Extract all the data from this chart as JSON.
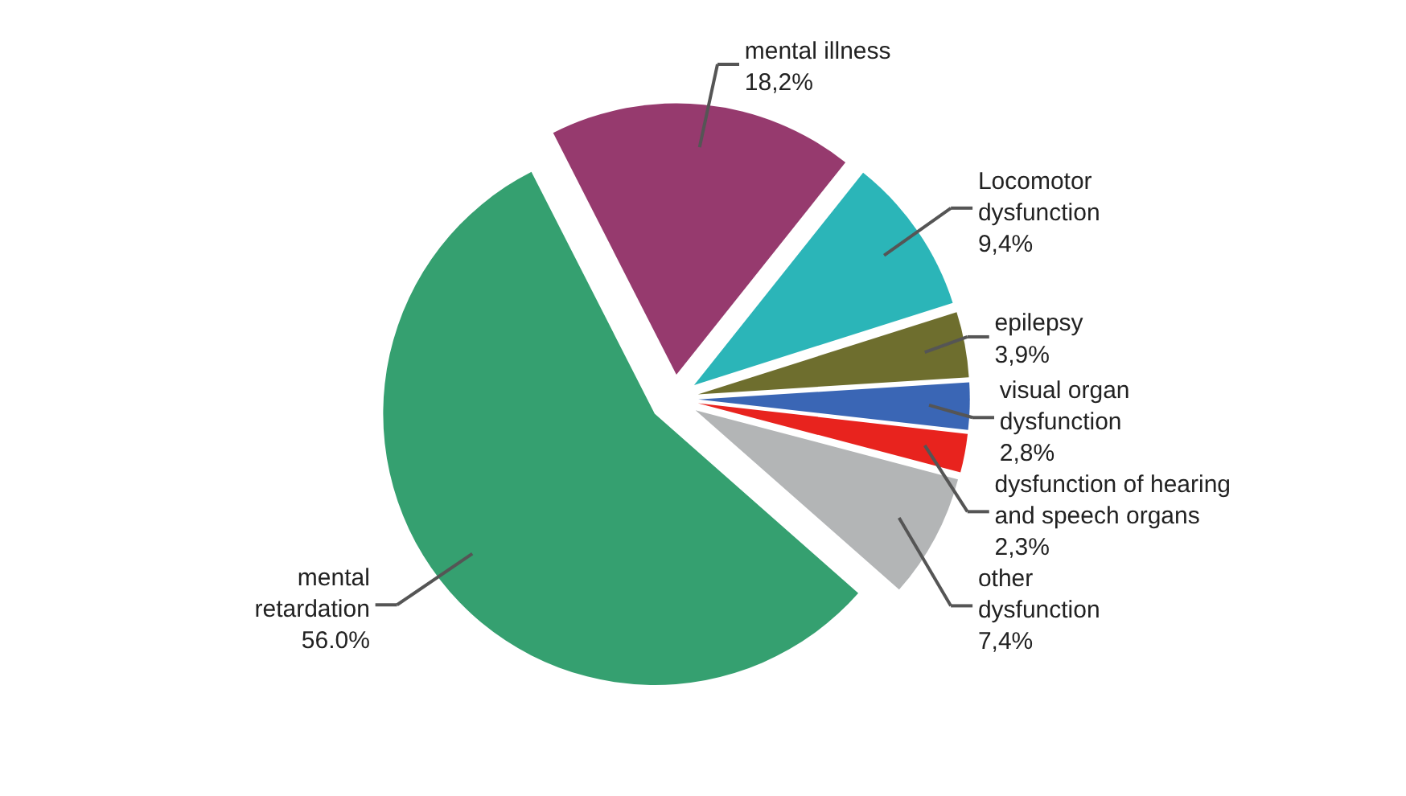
{
  "chart_data": {
    "type": "pie",
    "categories": [
      "mental illness",
      "Locomotor\ndysfunction",
      "epilepsy",
      "visual organ\ndysfunction",
      "dysfunction of hearing\nand speech organs",
      "other\ndysfunction",
      "mental\nretardation"
    ],
    "values": [
      18.2,
      9.4,
      3.9,
      2.8,
      2.3,
      7.4,
      56.0
    ],
    "value_labels": [
      "18,2%",
      "9,4%",
      "3,9%",
      "2,8%",
      "2,3%",
      "7,4%",
      "56.0%"
    ],
    "colors": [
      "#963a6e",
      "#2bb5b8",
      "#6e6e2e",
      "#3a66b5",
      "#e8231e",
      "#b3b5b6",
      "#35a070"
    ]
  }
}
